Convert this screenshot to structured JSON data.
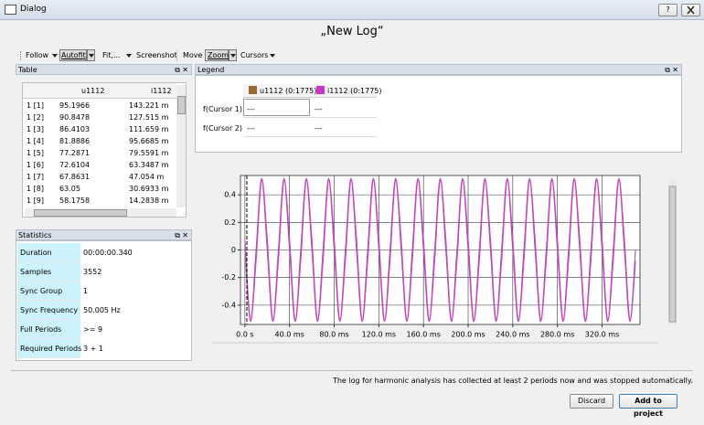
{
  "window": {
    "title": "Dialog",
    "help": "?"
  },
  "heading": "„New Log“",
  "toolbar": [
    "Follow",
    "Autofit",
    "Fit,...",
    "Screenshot",
    "Move",
    "Zoom",
    "Cursors"
  ],
  "table_panel": {
    "title": "Table",
    "columns": [
      "u1112",
      "i1112"
    ],
    "rows": [
      [
        "1 [1]",
        "95.1966",
        "143.221 m"
      ],
      [
        "1 [2]",
        "90.8478",
        "127.515 m"
      ],
      [
        "1 [3]",
        "86.4103",
        "111.659 m"
      ],
      [
        "1 [4]",
        "81.8886",
        "95.6685 m"
      ],
      [
        "1 [5]",
        "77.2871",
        "79.5591 m"
      ],
      [
        "1 [6]",
        "72.6104",
        "63.3487 m"
      ],
      [
        "1 [7]",
        "67.8631",
        "47.054 m"
      ],
      [
        "1 [8]",
        "63.05",
        "30.6933 m"
      ],
      [
        "1 [9]",
        "58.1758",
        "14.2838 m"
      ]
    ]
  },
  "statistics_panel": {
    "title": "Statistics",
    "rows": [
      [
        "Duration",
        "00:00:00.340"
      ],
      [
        "Samples",
        "3552"
      ],
      [
        "Sync Group",
        "1"
      ],
      [
        "Sync Frequency",
        "50.005 Hz"
      ],
      [
        "Full Periods",
        ">= 9"
      ],
      [
        "Required Periods",
        "3 + 1"
      ]
    ]
  },
  "legend_panel": {
    "title": "Legend",
    "series": [
      {
        "name": "u1112 (0:1775)",
        "color": "#9a6836"
      },
      {
        "name": "i1112 (0:1775)",
        "color": "#cc33cc"
      }
    ],
    "rows": [
      [
        "f(Cursor 1)",
        "---",
        "---"
      ],
      [
        "f(Cursor 2)",
        "---",
        "---"
      ]
    ]
  },
  "plot": {
    "type": "line",
    "x": [
      0,
      5,
      10,
      15,
      20,
      25,
      30,
      35,
      40,
      45,
      50,
      55,
      60,
      65,
      70,
      75,
      80,
      85,
      90,
      95,
      100,
      105,
      110,
      115,
      120,
      125,
      130,
      135,
      140,
      145,
      150,
      155,
      160,
      165,
      170,
      175,
      180,
      185,
      190,
      195,
      200,
      205,
      210,
      215,
      220,
      225,
      230,
      235,
      240,
      245,
      250,
      255,
      260,
      265,
      270,
      275,
      280,
      285,
      290,
      295,
      300,
      305,
      310,
      315,
      320,
      325,
      330,
      335,
      340,
      345,
      350
    ],
    "series": [
      {
        "name": "u1112",
        "color": "#9a5a9a",
        "values": [
          0,
          -0.52,
          0,
          0.52,
          0,
          -0.52,
          0,
          0.52,
          0,
          -0.52,
          0,
          0.52,
          0,
          -0.52,
          0,
          0.52,
          0,
          -0.52,
          0,
          0.52,
          0,
          -0.52,
          0,
          0.52,
          0,
          -0.52,
          0,
          0.52,
          0,
          -0.52,
          0,
          0.52,
          0,
          -0.52,
          0,
          0.52,
          0,
          -0.52,
          0,
          0.52,
          0,
          -0.52,
          0,
          0.52,
          0,
          -0.52,
          0,
          0.52,
          0,
          -0.52,
          0,
          0.52,
          0,
          -0.52,
          0,
          0.52,
          0,
          -0.52,
          0,
          0.52,
          0,
          -0.52,
          0,
          0.52,
          0,
          -0.52,
          0,
          0.52,
          0,
          -0.52,
          0
        ]
      },
      {
        "name": "i1112",
        "color": "#d040c8",
        "values": [
          0.08,
          -0.51,
          -0.08,
          0.51,
          0.08,
          -0.51,
          -0.08,
          0.51,
          0.08,
          -0.51,
          -0.08,
          0.51,
          0.08,
          -0.51,
          -0.08,
          0.51,
          0.08,
          -0.51,
          -0.08,
          0.51,
          0.08,
          -0.51,
          -0.08,
          0.51,
          0.08,
          -0.51,
          -0.08,
          0.51,
          0.08,
          -0.51,
          -0.08,
          0.51,
          0.08,
          -0.51,
          -0.08,
          0.51,
          0.08,
          -0.51,
          -0.08,
          0.51,
          0.08,
          -0.51,
          -0.08,
          0.51,
          0.08,
          -0.51,
          -0.08,
          0.51,
          0.08,
          -0.51,
          -0.08,
          0.51,
          0.08,
          -0.51,
          -0.08,
          0.51,
          0.08,
          -0.51,
          -0.08,
          0.51,
          0.08,
          -0.51,
          -0.08,
          0.51,
          0.08,
          -0.51,
          -0.08,
          0.51,
          0.08,
          -0.51,
          -0.08
        ]
      }
    ],
    "xlim": [
      -4,
      354
    ],
    "ylim": [
      -0.54,
      0.54
    ],
    "xticks": [
      {
        "value": 0,
        "label": "0.0 s"
      },
      {
        "value": 40,
        "label": "40.0 ms"
      },
      {
        "value": 80,
        "label": "80.0 ms"
      },
      {
        "value": 120,
        "label": "120.0 ms"
      },
      {
        "value": 160,
        "label": "160.0 ms"
      },
      {
        "value": 200,
        "label": "200.0 ms"
      },
      {
        "value": 240,
        "label": "240.0 ms"
      },
      {
        "value": 280,
        "label": "280.0 ms"
      },
      {
        "value": 320,
        "label": "320.0 ms"
      }
    ],
    "yticks": [
      -0.4,
      -0.2,
      0,
      0.2,
      0.4
    ],
    "grid": true
  },
  "status": "The log for harmonic analysis has collected at least 2 periods now and was stopped automatically.",
  "buttons": [
    "Discard",
    "Add to project"
  ]
}
